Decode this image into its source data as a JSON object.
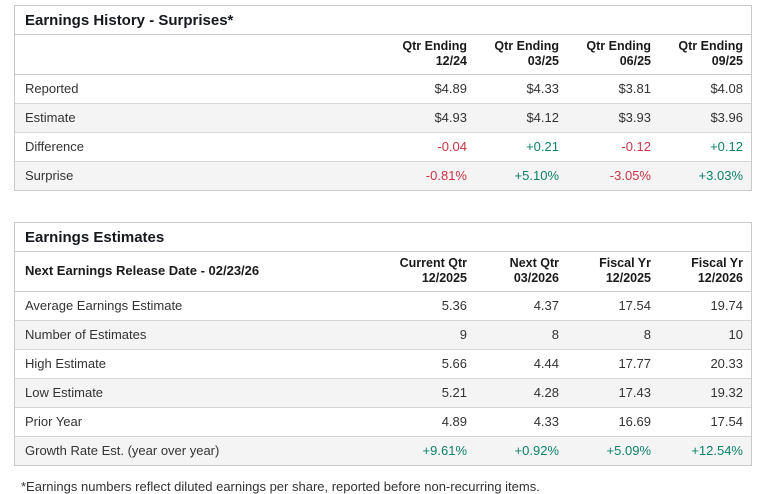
{
  "colors": {
    "positive": "#0c8269",
    "negative": "#cc3347",
    "stripe_bg": "#f4f4f4",
    "border": "#c9c9c9",
    "title_text": "#15181d"
  },
  "tables": [
    {
      "title": "Earnings History - Surprises*",
      "header_label": "",
      "columns": [
        {
          "line1": "Qtr Ending",
          "line2": "12/24"
        },
        {
          "line1": "Qtr Ending",
          "line2": "03/25"
        },
        {
          "line1": "Qtr Ending",
          "line2": "06/25"
        },
        {
          "line1": "Qtr Ending",
          "line2": "09/25"
        }
      ],
      "rows": [
        {
          "label": "Reported",
          "values": [
            "$4.89",
            "$4.33",
            "$3.81",
            "$4.08"
          ],
          "tones": [
            "neutral",
            "neutral",
            "neutral",
            "neutral"
          ]
        },
        {
          "label": "Estimate",
          "values": [
            "$4.93",
            "$4.12",
            "$3.93",
            "$3.96"
          ],
          "tones": [
            "neutral",
            "neutral",
            "neutral",
            "neutral"
          ]
        },
        {
          "label": "Difference",
          "values": [
            "-0.04",
            "+0.21",
            "-0.12",
            "+0.12"
          ],
          "tones": [
            "neg",
            "pos",
            "neg",
            "pos"
          ]
        },
        {
          "label": "Surprise",
          "values": [
            "-0.81%",
            "+5.10%",
            "-3.05%",
            "+3.03%"
          ],
          "tones": [
            "neg",
            "pos",
            "neg",
            "pos"
          ]
        }
      ]
    },
    {
      "title": "Earnings Estimates",
      "header_label": "Next Earnings Release Date - 02/23/26",
      "columns": [
        {
          "line1": "Current Qtr",
          "line2": "12/2025"
        },
        {
          "line1": "Next Qtr",
          "line2": "03/2026"
        },
        {
          "line1": "Fiscal Yr",
          "line2": "12/2025"
        },
        {
          "line1": "Fiscal Yr",
          "line2": "12/2026"
        }
      ],
      "rows": [
        {
          "label": "Average Earnings Estimate",
          "values": [
            "5.36",
            "4.37",
            "17.54",
            "19.74"
          ],
          "tones": [
            "neutral",
            "neutral",
            "neutral",
            "neutral"
          ]
        },
        {
          "label": "Number of Estimates",
          "values": [
            "9",
            "8",
            "8",
            "10"
          ],
          "tones": [
            "neutral",
            "neutral",
            "neutral",
            "neutral"
          ]
        },
        {
          "label": "High Estimate",
          "values": [
            "5.66",
            "4.44",
            "17.77",
            "20.33"
          ],
          "tones": [
            "neutral",
            "neutral",
            "neutral",
            "neutral"
          ]
        },
        {
          "label": "Low Estimate",
          "values": [
            "5.21",
            "4.28",
            "17.43",
            "19.32"
          ],
          "tones": [
            "neutral",
            "neutral",
            "neutral",
            "neutral"
          ]
        },
        {
          "label": "Prior Year",
          "values": [
            "4.89",
            "4.33",
            "16.69",
            "17.54"
          ],
          "tones": [
            "neutral",
            "neutral",
            "neutral",
            "neutral"
          ]
        },
        {
          "label": "Growth Rate Est. (year over year)",
          "values": [
            "+9.61%",
            "+0.92%",
            "+5.09%",
            "+12.54%"
          ],
          "tones": [
            "pos",
            "pos",
            "pos",
            "pos"
          ]
        }
      ]
    }
  ],
  "footnote": "*Earnings numbers reflect diluted earnings per share, reported before non-recurring items."
}
